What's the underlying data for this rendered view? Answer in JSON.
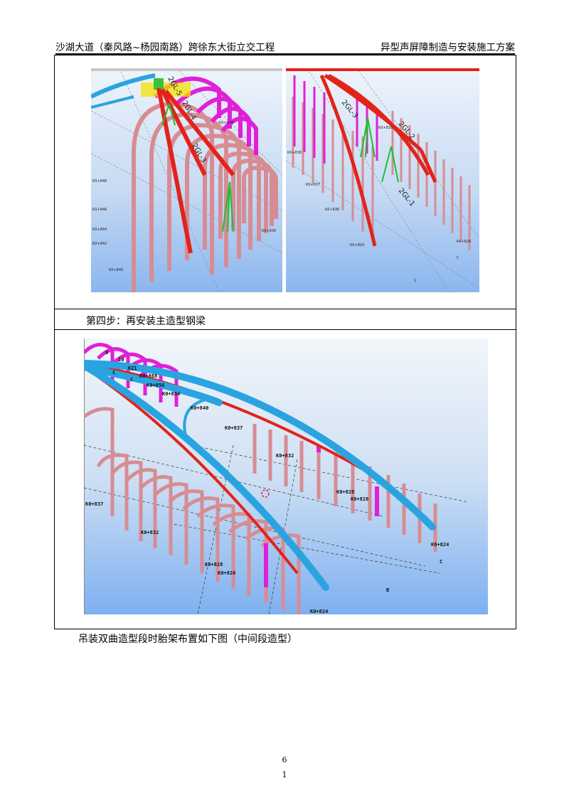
{
  "header": {
    "left": "沙湖大道（秦风路~杨园南路）跨徐东大街立交工程",
    "right": "异型声屏障制造与安装施工方案"
  },
  "step_label": "第四步：再安装主造型钢梁",
  "figure_top_left": {
    "beam_labels": [
      "2GL-5",
      "2GL-4",
      "2GL-3"
    ],
    "station_labels": [
      "K0+848",
      "K0+846",
      "K0+844",
      "K0+842",
      "K0+840",
      "K0+838",
      "K0+836"
    ]
  },
  "figure_top_right": {
    "beam_labels": [
      "2GL-3",
      "2GL-2",
      "2GL-1"
    ],
    "station_labels": [
      "K0+838",
      "K0+837",
      "K0+836",
      "K0+824",
      "K0+828",
      "K0+826"
    ],
    "axis_labels": [
      "C",
      "1"
    ]
  },
  "figure_bottom": {
    "station_labels": [
      "K0+868",
      "K0+856",
      "K0+854",
      "K0+840",
      "K0+837",
      "K0+832",
      "K0+828",
      "K0+826",
      "K0+824",
      "K0+837",
      "K0+832",
      "K0+828",
      "K0+826",
      "K0+824"
    ],
    "axis_labels": [
      "C",
      "C",
      "C",
      "B"
    ],
    "small_labels": [
      "9",
      "10",
      "K21"
    ]
  },
  "caption": "吊装双曲造型段时胎架布置如下图（中间段造型）",
  "page_number": "6",
  "sheet_number": "1"
}
